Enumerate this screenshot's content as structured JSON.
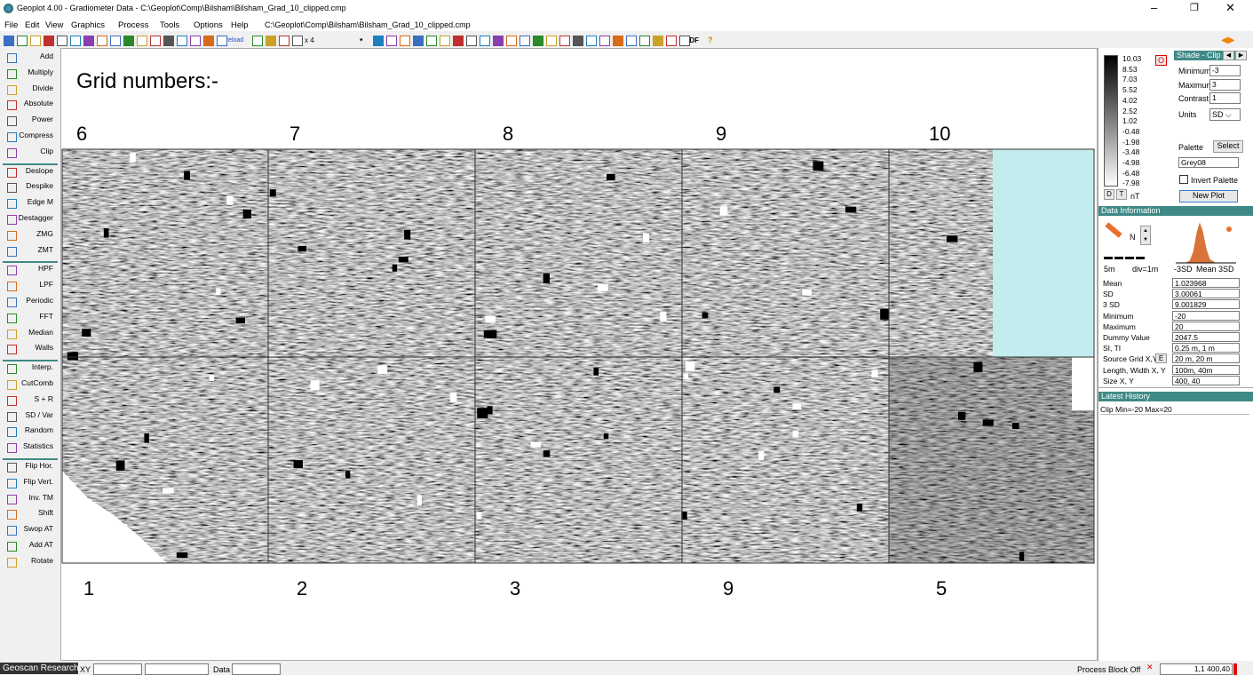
{
  "window": {
    "title": "Geoplot 4.00 - Gradiometer Data - C:\\Geoplot\\Comp\\Bilsham\\Bilsham_Grad_10_clipped.cmp"
  },
  "menu": {
    "items": [
      "File",
      "Edit",
      "View",
      "Graphics",
      "Process",
      "Tools",
      "Options",
      "Help"
    ],
    "document_path": "C:\\Geoplot\\Comp\\Bilsham\\Bilsham_Grad_10_clipped.cmp"
  },
  "toolbar": {
    "reload": "Reload",
    "zoom": "x 4",
    "pdf": "PDF",
    "help": "?"
  },
  "process_tools": [
    [
      "Add",
      "Multiply",
      "Divide",
      "Absolute",
      "Power",
      "Compress",
      "Clip"
    ],
    [
      "Deslope",
      "Despike",
      "Edge M",
      "Destagger",
      "ZMG",
      "ZMT"
    ],
    [
      "HPF",
      "LPF",
      "Periodic",
      "FFT",
      "Median",
      "Walls"
    ],
    [
      "Interp.",
      "CutComb",
      "S + R",
      "SD / Var",
      "Random",
      "Statistics"
    ],
    [
      "Flip Hor.",
      "Flip Vert.",
      "Inv. TM",
      "Shift",
      "Swop AT",
      "Add AT",
      "Rotate"
    ]
  ],
  "plot": {
    "annotation": "Grid numbers:-",
    "top_grid_numbers": [
      "6",
      "7",
      "8",
      "9",
      "10"
    ],
    "bottom_grid_numbers": [
      "1",
      "2",
      "3",
      "9",
      "5"
    ]
  },
  "palette_scale": {
    "labels": [
      "10.03",
      "8.53",
      "7.03",
      "5.52",
      "4.02",
      "2.52",
      "1.02",
      "-0.48",
      "-1.98",
      "-3.48",
      "-4.98",
      "-6.48",
      "-7.98"
    ],
    "reset": "O",
    "buttons": [
      "D",
      "T"
    ],
    "units": "nT"
  },
  "shade_clip": {
    "title": "Shade - Clip",
    "fields": [
      [
        "Minimum",
        "-3"
      ],
      [
        "Maximum",
        "3"
      ],
      [
        "Contrast",
        "1"
      ]
    ],
    "units_label": "Units",
    "units_value": "SD",
    "palette_label": "Palette",
    "select": "Select",
    "palette_name": "Grey08",
    "invert": "Invert Palette",
    "new_plot": "New Plot"
  },
  "data_information": {
    "title": "Data Information",
    "north": "N",
    "scale": "5m",
    "divisions": "div=1m",
    "histogram_labels": [
      "-3SD",
      "Mean",
      "3SD"
    ],
    "source_button": "E",
    "rows": [
      [
        "Mean",
        "1.023968"
      ],
      [
        "SD",
        "3.00061"
      ],
      [
        "3 SD",
        "9.001829"
      ],
      [
        "Minimum",
        "-20"
      ],
      [
        "Maximum",
        "20"
      ],
      [
        "Dummy Value",
        "2047.5"
      ],
      [
        "SI, TI",
        "0.25 m, 1 m"
      ],
      [
        "Source Grid X,Y",
        "20 m, 20 m"
      ],
      [
        "Length, Width X, Y",
        "100m, 40m"
      ],
      [
        "Size X, Y",
        "400, 40"
      ]
    ]
  },
  "latest_history": {
    "title": "Latest History",
    "entries": [
      "Clip Min=-20 Max=20"
    ]
  },
  "status_bar": {
    "brand": "Geoscan Research",
    "xy": "XY",
    "data": "Data",
    "process_block": "Process Block Off",
    "position": "1,1 400,40"
  }
}
